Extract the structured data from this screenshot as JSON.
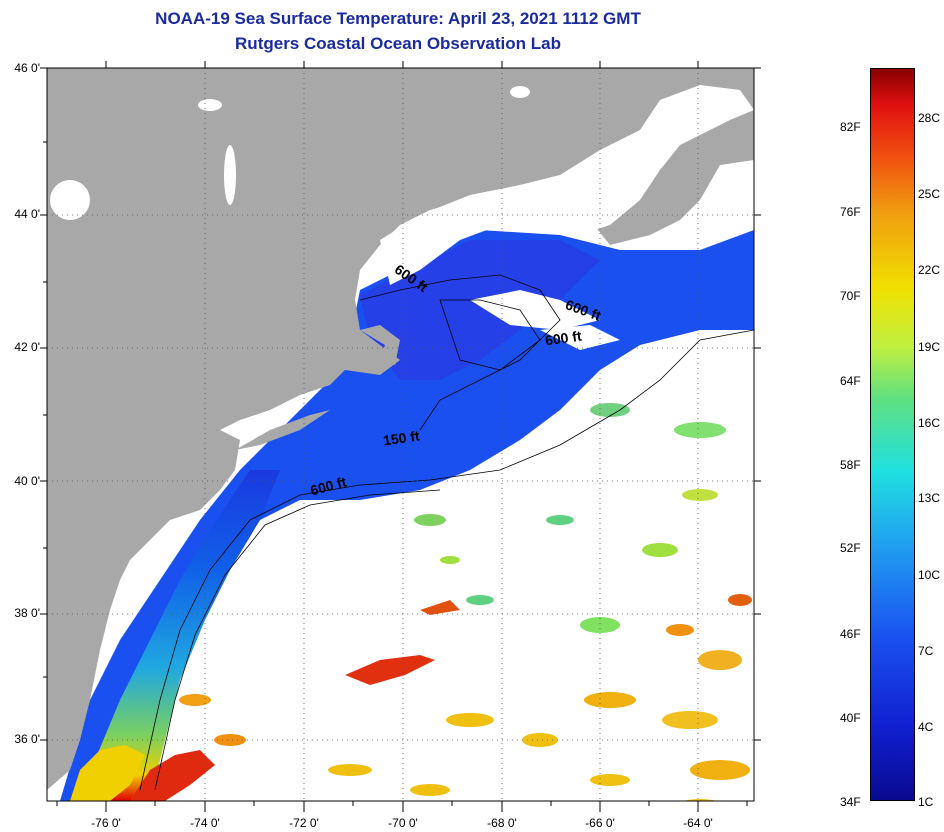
{
  "title": "NOAA-19 Sea Surface Temperature:  April 23, 2021 1112 GMT",
  "subtitle": "Rutgers Coastal Ocean Observation Lab",
  "lat_labels": [
    "46 0'",
    "44 0'",
    "42 0'",
    "40 0'",
    "38 0'",
    "36 0'"
  ],
  "lon_labels": [
    "-76 0'",
    "-74 0'",
    "-72 0'",
    "-70 0'",
    "-68 0'",
    "-66 0'",
    "-64 0'"
  ],
  "contour_labels": [
    "600 ft",
    "600 ft",
    "600 ft",
    "150 ft",
    "600 ft"
  ],
  "colorbar": {
    "fahrenheit": [
      "82F",
      "76F",
      "70F",
      "64F",
      "58F",
      "52F",
      "46F",
      "40F",
      "34F"
    ],
    "celsius": [
      "28C",
      "25C",
      "22C",
      "19C",
      "16C",
      "13C",
      "10C",
      "7C",
      "4C",
      "1C"
    ]
  },
  "colors": {
    "land": "#a8a8a8",
    "cloud": "#ffffff",
    "title": "#1a2ba0"
  }
}
